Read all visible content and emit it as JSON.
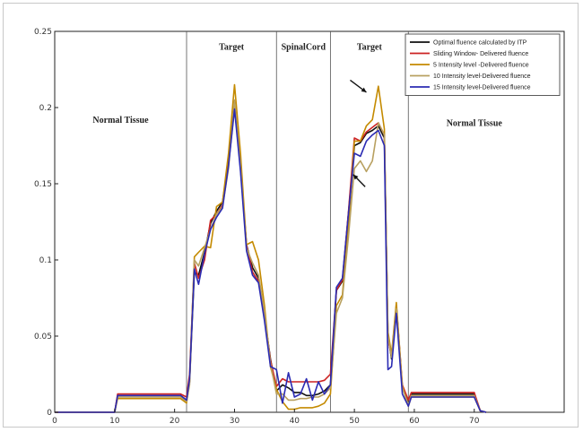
{
  "chart_data": {
    "type": "line",
    "xlim": [
      0,
      85
    ],
    "ylim": [
      0,
      0.25
    ],
    "x_ticks": [
      0,
      10,
      20,
      30,
      40,
      50,
      60,
      70
    ],
    "x_tick_labels": [
      "0",
      "10",
      "20",
      "30",
      "40",
      "50",
      "60",
      "70"
    ],
    "y_ticks": [
      0,
      0.05,
      0.1,
      0.15,
      0.2,
      0.25
    ],
    "y_tick_labels": [
      "0",
      "0.05",
      "0.1",
      "0.15",
      "0.2",
      "0.25"
    ],
    "grid": false,
    "legend_position": "top-right",
    "region_boundaries": [
      22,
      37,
      46,
      59
    ],
    "regions": [
      {
        "label": "Normal Tissue",
        "x": 11,
        "y": 0.19
      },
      {
        "label": "Target",
        "x": 29.5,
        "y": 0.238
      },
      {
        "label": "SpinalCord",
        "x": 41.5,
        "y": 0.238
      },
      {
        "label": "Target",
        "x": 52.5,
        "y": 0.238
      },
      {
        "label": "Normal Tissue",
        "x": 70,
        "y": 0.188
      }
    ],
    "annotations": [
      {
        "type": "arrow",
        "from": [
          49.3,
          0.218
        ],
        "to": [
          52.0,
          0.21
        ]
      },
      {
        "type": "arrow",
        "from": [
          51.8,
          0.148
        ],
        "to": [
          49.8,
          0.156
        ]
      }
    ],
    "series": [
      {
        "name": "Optimal fluence calculated by ITP",
        "color": "#111111",
        "points": [
          [
            0,
            0
          ],
          [
            10,
            0
          ],
          [
            10.5,
            0.011
          ],
          [
            21,
            0.011
          ],
          [
            22,
            0.008
          ],
          [
            22.5,
            0.02
          ],
          [
            23.3,
            0.092
          ],
          [
            24,
            0.09
          ],
          [
            25,
            0.105
          ],
          [
            26,
            0.124
          ],
          [
            27,
            0.132
          ],
          [
            28,
            0.138
          ],
          [
            29,
            0.165
          ],
          [
            30,
            0.201
          ],
          [
            31,
            0.16
          ],
          [
            32,
            0.11
          ],
          [
            33,
            0.095
          ],
          [
            34,
            0.088
          ],
          [
            35,
            0.063
          ],
          [
            36,
            0.035
          ],
          [
            37,
            0.014
          ],
          [
            38,
            0.018
          ],
          [
            39,
            0.016
          ],
          [
            40,
            0.013
          ],
          [
            41,
            0.013
          ],
          [
            42,
            0.011
          ],
          [
            43,
            0.011
          ],
          [
            44,
            0.012
          ],
          [
            45,
            0.014
          ],
          [
            46,
            0.018
          ],
          [
            47,
            0.08
          ],
          [
            48,
            0.086
          ],
          [
            49,
            0.13
          ],
          [
            50,
            0.175
          ],
          [
            51,
            0.177
          ],
          [
            52,
            0.183
          ],
          [
            53,
            0.185
          ],
          [
            54,
            0.188
          ],
          [
            55,
            0.18
          ],
          [
            55.6,
            0.05
          ],
          [
            56.2,
            0.035
          ],
          [
            57,
            0.07
          ],
          [
            58,
            0.016
          ],
          [
            59,
            0.006
          ],
          [
            59.5,
            0.012
          ],
          [
            70,
            0.012
          ],
          [
            71,
            0.001
          ],
          [
            72,
            0
          ]
        ]
      },
      {
        "name": "Sliding Window- Delivered fluence",
        "color": "#cc2222",
        "points": [
          [
            0,
            0
          ],
          [
            10,
            0
          ],
          [
            10.5,
            0.012
          ],
          [
            21,
            0.012
          ],
          [
            22,
            0.01
          ],
          [
            22.5,
            0.025
          ],
          [
            23.3,
            0.098
          ],
          [
            24,
            0.088
          ],
          [
            25,
            0.1
          ],
          [
            26,
            0.126
          ],
          [
            27,
            0.13
          ],
          [
            28,
            0.136
          ],
          [
            29,
            0.163
          ],
          [
            30,
            0.2
          ],
          [
            31,
            0.163
          ],
          [
            32,
            0.11
          ],
          [
            33,
            0.092
          ],
          [
            34,
            0.086
          ],
          [
            35,
            0.064
          ],
          [
            36,
            0.034
          ],
          [
            37,
            0.017
          ],
          [
            38,
            0.022
          ],
          [
            39,
            0.02
          ],
          [
            40,
            0.02
          ],
          [
            41,
            0.02
          ],
          [
            42,
            0.02
          ],
          [
            43,
            0.02
          ],
          [
            44,
            0.02
          ],
          [
            45,
            0.021
          ],
          [
            46,
            0.025
          ],
          [
            47,
            0.08
          ],
          [
            48,
            0.087
          ],
          [
            49,
            0.131
          ],
          [
            50,
            0.18
          ],
          [
            51,
            0.178
          ],
          [
            52,
            0.184
          ],
          [
            53,
            0.187
          ],
          [
            54,
            0.19
          ],
          [
            55,
            0.182
          ],
          [
            55.6,
            0.048
          ],
          [
            56.2,
            0.037
          ],
          [
            57,
            0.07
          ],
          [
            58,
            0.018
          ],
          [
            59,
            0.008
          ],
          [
            59.5,
            0.013
          ],
          [
            70,
            0.013
          ],
          [
            71,
            0.001
          ],
          [
            72,
            0
          ]
        ]
      },
      {
        "name": "5 Intensity level -Delivered fluence",
        "color": "#c48a00",
        "points": [
          [
            0,
            0
          ],
          [
            10,
            0
          ],
          [
            10.5,
            0.009
          ],
          [
            21,
            0.009
          ],
          [
            22,
            0.006
          ],
          [
            22.5,
            0.02
          ],
          [
            23.3,
            0.102
          ],
          [
            24,
            0.105
          ],
          [
            25,
            0.109
          ],
          [
            26,
            0.108
          ],
          [
            27,
            0.135
          ],
          [
            28,
            0.138
          ],
          [
            29,
            0.17
          ],
          [
            30,
            0.215
          ],
          [
            31,
            0.17
          ],
          [
            32,
            0.11
          ],
          [
            33,
            0.112
          ],
          [
            34,
            0.1
          ],
          [
            35,
            0.07
          ],
          [
            36,
            0.03
          ],
          [
            37,
            0.015
          ],
          [
            38,
            0.007
          ],
          [
            39,
            0.002
          ],
          [
            40,
            0.002
          ],
          [
            41,
            0.003
          ],
          [
            42,
            0.003
          ],
          [
            43,
            0.003
          ],
          [
            44,
            0.004
          ],
          [
            45,
            0.006
          ],
          [
            46,
            0.012
          ],
          [
            47,
            0.07
          ],
          [
            48,
            0.077
          ],
          [
            49,
            0.122
          ],
          [
            50,
            0.178
          ],
          [
            51,
            0.178
          ],
          [
            52,
            0.188
          ],
          [
            53,
            0.192
          ],
          [
            54,
            0.214
          ],
          [
            55,
            0.186
          ],
          [
            55.6,
            0.053
          ],
          [
            56.2,
            0.038
          ],
          [
            57,
            0.072
          ],
          [
            58,
            0.017
          ],
          [
            59,
            0.004
          ],
          [
            59.5,
            0.01
          ],
          [
            70,
            0.01
          ],
          [
            71,
            0.001
          ],
          [
            72,
            0
          ]
        ]
      },
      {
        "name": "10 Intensity level-Delivered fluence",
        "color": "#b8a060",
        "points": [
          [
            0,
            0
          ],
          [
            10,
            0
          ],
          [
            10.5,
            0.01
          ],
          [
            21,
            0.01
          ],
          [
            22,
            0.007
          ],
          [
            22.5,
            0.018
          ],
          [
            23.3,
            0.1
          ],
          [
            24,
            0.096
          ],
          [
            25,
            0.108
          ],
          [
            26,
            0.12
          ],
          [
            27,
            0.13
          ],
          [
            28,
            0.135
          ],
          [
            29,
            0.16
          ],
          [
            30,
            0.205
          ],
          [
            31,
            0.162
          ],
          [
            32,
            0.108
          ],
          [
            33,
            0.098
          ],
          [
            34,
            0.09
          ],
          [
            35,
            0.066
          ],
          [
            36,
            0.032
          ],
          [
            37,
            0.012
          ],
          [
            38,
            0.012
          ],
          [
            39,
            0.008
          ],
          [
            40,
            0.008
          ],
          [
            41,
            0.009
          ],
          [
            42,
            0.009
          ],
          [
            43,
            0.01
          ],
          [
            44,
            0.01
          ],
          [
            45,
            0.012
          ],
          [
            46,
            0.016
          ],
          [
            47,
            0.065
          ],
          [
            48,
            0.075
          ],
          [
            49,
            0.115
          ],
          [
            50,
            0.16
          ],
          [
            51,
            0.165
          ],
          [
            52,
            0.158
          ],
          [
            53,
            0.165
          ],
          [
            54,
            0.19
          ],
          [
            55,
            0.182
          ],
          [
            55.6,
            0.05
          ],
          [
            56.2,
            0.036
          ],
          [
            57,
            0.068
          ],
          [
            58,
            0.016
          ],
          [
            59,
            0.005
          ],
          [
            59.5,
            0.011
          ],
          [
            70,
            0.011
          ],
          [
            71,
            0.001
          ],
          [
            72,
            0
          ]
        ]
      },
      {
        "name": "15 Intensity level-Delivered fluence",
        "color": "#2b2bb3",
        "points": [
          [
            0,
            0
          ],
          [
            10,
            0
          ],
          [
            10.5,
            0.011
          ],
          [
            21,
            0.011
          ],
          [
            22,
            0.008
          ],
          [
            22.5,
            0.022
          ],
          [
            23.3,
            0.094
          ],
          [
            24,
            0.084
          ],
          [
            25,
            0.104
          ],
          [
            26,
            0.12
          ],
          [
            27,
            0.128
          ],
          [
            28,
            0.134
          ],
          [
            29,
            0.162
          ],
          [
            30,
            0.199
          ],
          [
            31,
            0.158
          ],
          [
            32,
            0.106
          ],
          [
            33,
            0.09
          ],
          [
            34,
            0.085
          ],
          [
            35,
            0.06
          ],
          [
            36,
            0.03
          ],
          [
            37,
            0.028
          ],
          [
            38,
            0.006
          ],
          [
            39,
            0.026
          ],
          [
            40,
            0.01
          ],
          [
            41,
            0.012
          ],
          [
            42,
            0.022
          ],
          [
            43,
            0.008
          ],
          [
            44,
            0.02
          ],
          [
            45,
            0.012
          ],
          [
            46,
            0.018
          ],
          [
            47,
            0.082
          ],
          [
            48,
            0.088
          ],
          [
            49,
            0.13
          ],
          [
            50,
            0.17
          ],
          [
            51,
            0.168
          ],
          [
            52,
            0.178
          ],
          [
            53,
            0.182
          ],
          [
            54,
            0.185
          ],
          [
            55,
            0.175
          ],
          [
            55.6,
            0.028
          ],
          [
            56.2,
            0.03
          ],
          [
            57,
            0.065
          ],
          [
            58,
            0.012
          ],
          [
            59,
            0.004
          ],
          [
            59.5,
            0.01
          ],
          [
            70,
            0.01
          ],
          [
            71,
            0.001
          ],
          [
            72,
            0
          ]
        ]
      }
    ]
  }
}
